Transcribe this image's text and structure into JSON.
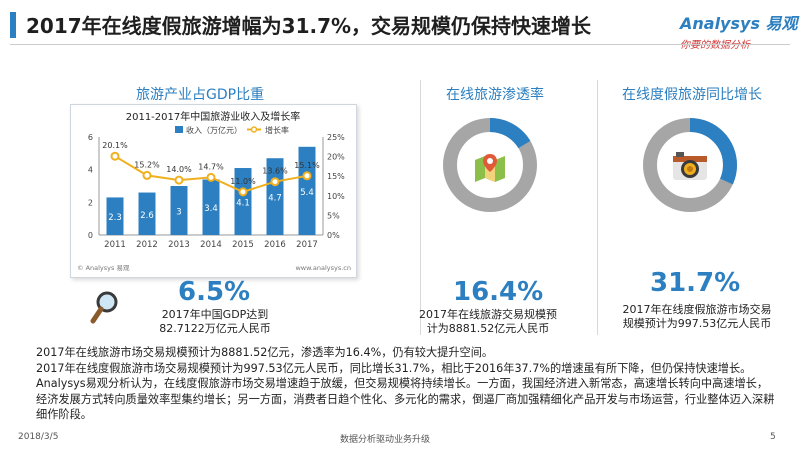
{
  "header": {
    "title": "2017年在线度假旅游增幅为31.7%，交易规模仍保持快速增长",
    "logo_main": "Analysys 易观",
    "logo_sub": "你要的数据分析",
    "colors": {
      "accent": "#2c7fc0",
      "bar": "#2c7fc0",
      "line": "#f0b01e",
      "donut_track": "#a6a6a6",
      "logo_sub": "#d23a3a"
    }
  },
  "left_section": {
    "title": "旅游产业占GDP比重",
    "big_value": "6.5%",
    "desc": [
      "2017年中国GDP达到",
      "82.7122万亿元人民币"
    ],
    "icon": "magnifier-icon",
    "chart_watermark_left": "© Analysys 易观",
    "chart_watermark_right": "www.analysys.cn"
  },
  "chart_data": {
    "type": "bar",
    "title": "2011-2017年中国旅游业收入及增长率",
    "categories": [
      "2011",
      "2012",
      "2013",
      "2014",
      "2015",
      "2016",
      "2017"
    ],
    "series": [
      {
        "name": "收入（万亿元）",
        "type": "bar",
        "values": [
          2.3,
          2.6,
          3.0,
          3.4,
          4.1,
          4.7,
          5.4
        ]
      },
      {
        "name": "增长率",
        "type": "line",
        "values": [
          20.1,
          15.2,
          14.0,
          14.7,
          11.0,
          13.6,
          15.1
        ],
        "labels": [
          "20.1%",
          "15.2%",
          "14.0%",
          "14.7%",
          "11.0%",
          "13.6%",
          "15.1%"
        ]
      }
    ],
    "y_left": {
      "ticks": [
        "0",
        "2",
        "4",
        "6"
      ],
      "ylim": [
        0,
        6
      ]
    },
    "y_right": {
      "ticks": [
        "0%",
        "5%",
        "10%",
        "15%",
        "20%",
        "25%"
      ],
      "ylim": [
        0,
        25
      ]
    },
    "legend_position": "top-right",
    "grid": false
  },
  "middle_section": {
    "title": "在线旅游渗透率",
    "big_value": "16.4%",
    "desc": [
      "2017年在线旅游交易规模预",
      "计为8881.52亿元人民币"
    ],
    "icon": "map-pin-icon",
    "donut_fraction": 0.164
  },
  "right_section": {
    "title": "在线度假旅游同比增长",
    "big_value": "31.7%",
    "desc": [
      "2017年在线度假旅游市场交易",
      "规模预计为997.53亿元人民币"
    ],
    "icon": "camera-icon",
    "donut_fraction": 0.317
  },
  "body_paragraphs": [
    "2017年在线旅游市场交易规模预计为8881.52亿元，渗透率为16.4%，仍有较大提升空间。",
    "2017年在线度假旅游市场交易规模预计为997.53亿元人民币，同比增长31.7%，相比于2016年37.7%的增速虽有所下降，但仍保持快速增长。",
    "Analysys易观分析认为，在线度假旅游市场交易增速趋于放缓，但交易规模将持续增长。一方面，我国经济进入新常态，高速增长转向中高速增长，经济发展方式转向质量效率型集约增长；另一方面，消费者日趋个性化、多元化的需求，倒逼厂商加强精细化产品开发与市场运营，行业整体迈入深耕细作阶段。"
  ],
  "footer": {
    "date": "2018/3/5",
    "slogan": "数据分析驱动业务升级",
    "page": "5"
  }
}
